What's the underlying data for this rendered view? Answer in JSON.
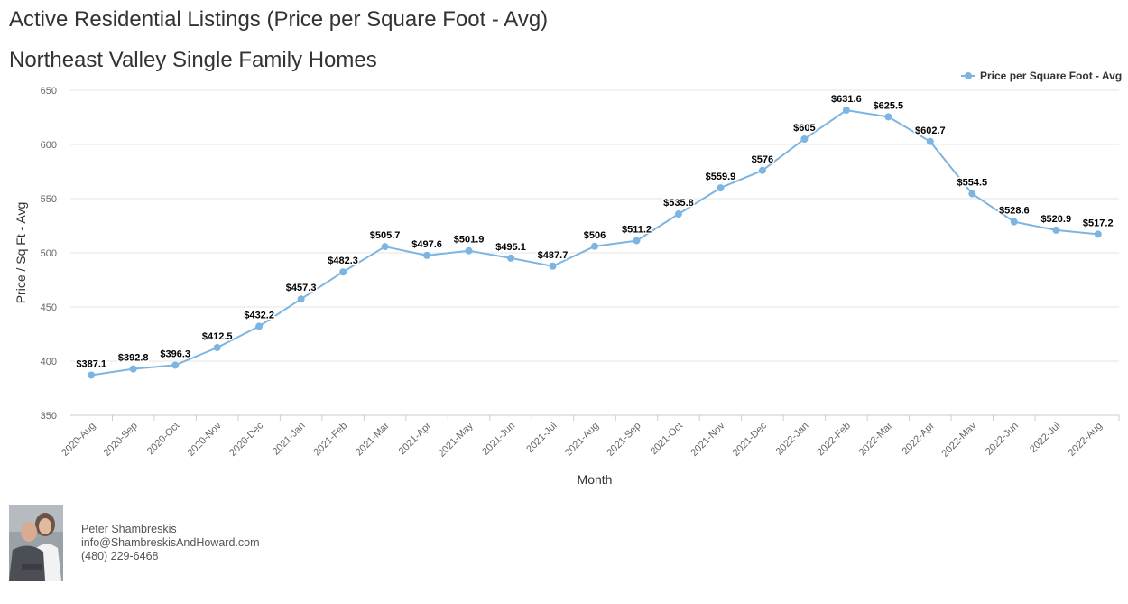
{
  "header": {
    "title": "Active Residential Listings (Price per Square Foot - Avg)",
    "subtitle": "Northeast Valley Single Family Homes"
  },
  "chart_data": {
    "type": "line",
    "xlabel": "Month",
    "ylabel": "Price / Sq Ft - Avg",
    "ylim": [
      350,
      650
    ],
    "yticks": [
      350,
      400,
      450,
      500,
      550,
      600,
      650
    ],
    "grid": true,
    "legend_position": "top-right",
    "value_prefix": "$",
    "categories": [
      "2020-Aug",
      "2020-Sep",
      "2020-Oct",
      "2020-Nov",
      "2020-Dec",
      "2021-Jan",
      "2021-Feb",
      "2021-Mar",
      "2021-Apr",
      "2021-May",
      "2021-Jun",
      "2021-Jul",
      "2021-Aug",
      "2021-Sep",
      "2021-Oct",
      "2021-Nov",
      "2021-Dec",
      "2022-Jan",
      "2022-Feb",
      "2022-Mar",
      "2022-Apr",
      "2022-May",
      "2022-Jun",
      "2022-Jul",
      "2022-Aug"
    ],
    "series": [
      {
        "name": "Price per Square Foot - Avg",
        "color": "#7cb5e2",
        "values": [
          387.1,
          392.8,
          396.3,
          412.5,
          432.2,
          457.3,
          482.3,
          505.7,
          497.6,
          501.9,
          495.1,
          487.7,
          506,
          511.2,
          535.8,
          559.9,
          576,
          605,
          631.6,
          625.5,
          602.7,
          554.5,
          528.6,
          520.9,
          517.2
        ]
      }
    ]
  },
  "agent": {
    "name": "Peter Shambreskis",
    "email": "info@ShambreskisAndHoward.com",
    "phone": "(480) 229-6468"
  }
}
